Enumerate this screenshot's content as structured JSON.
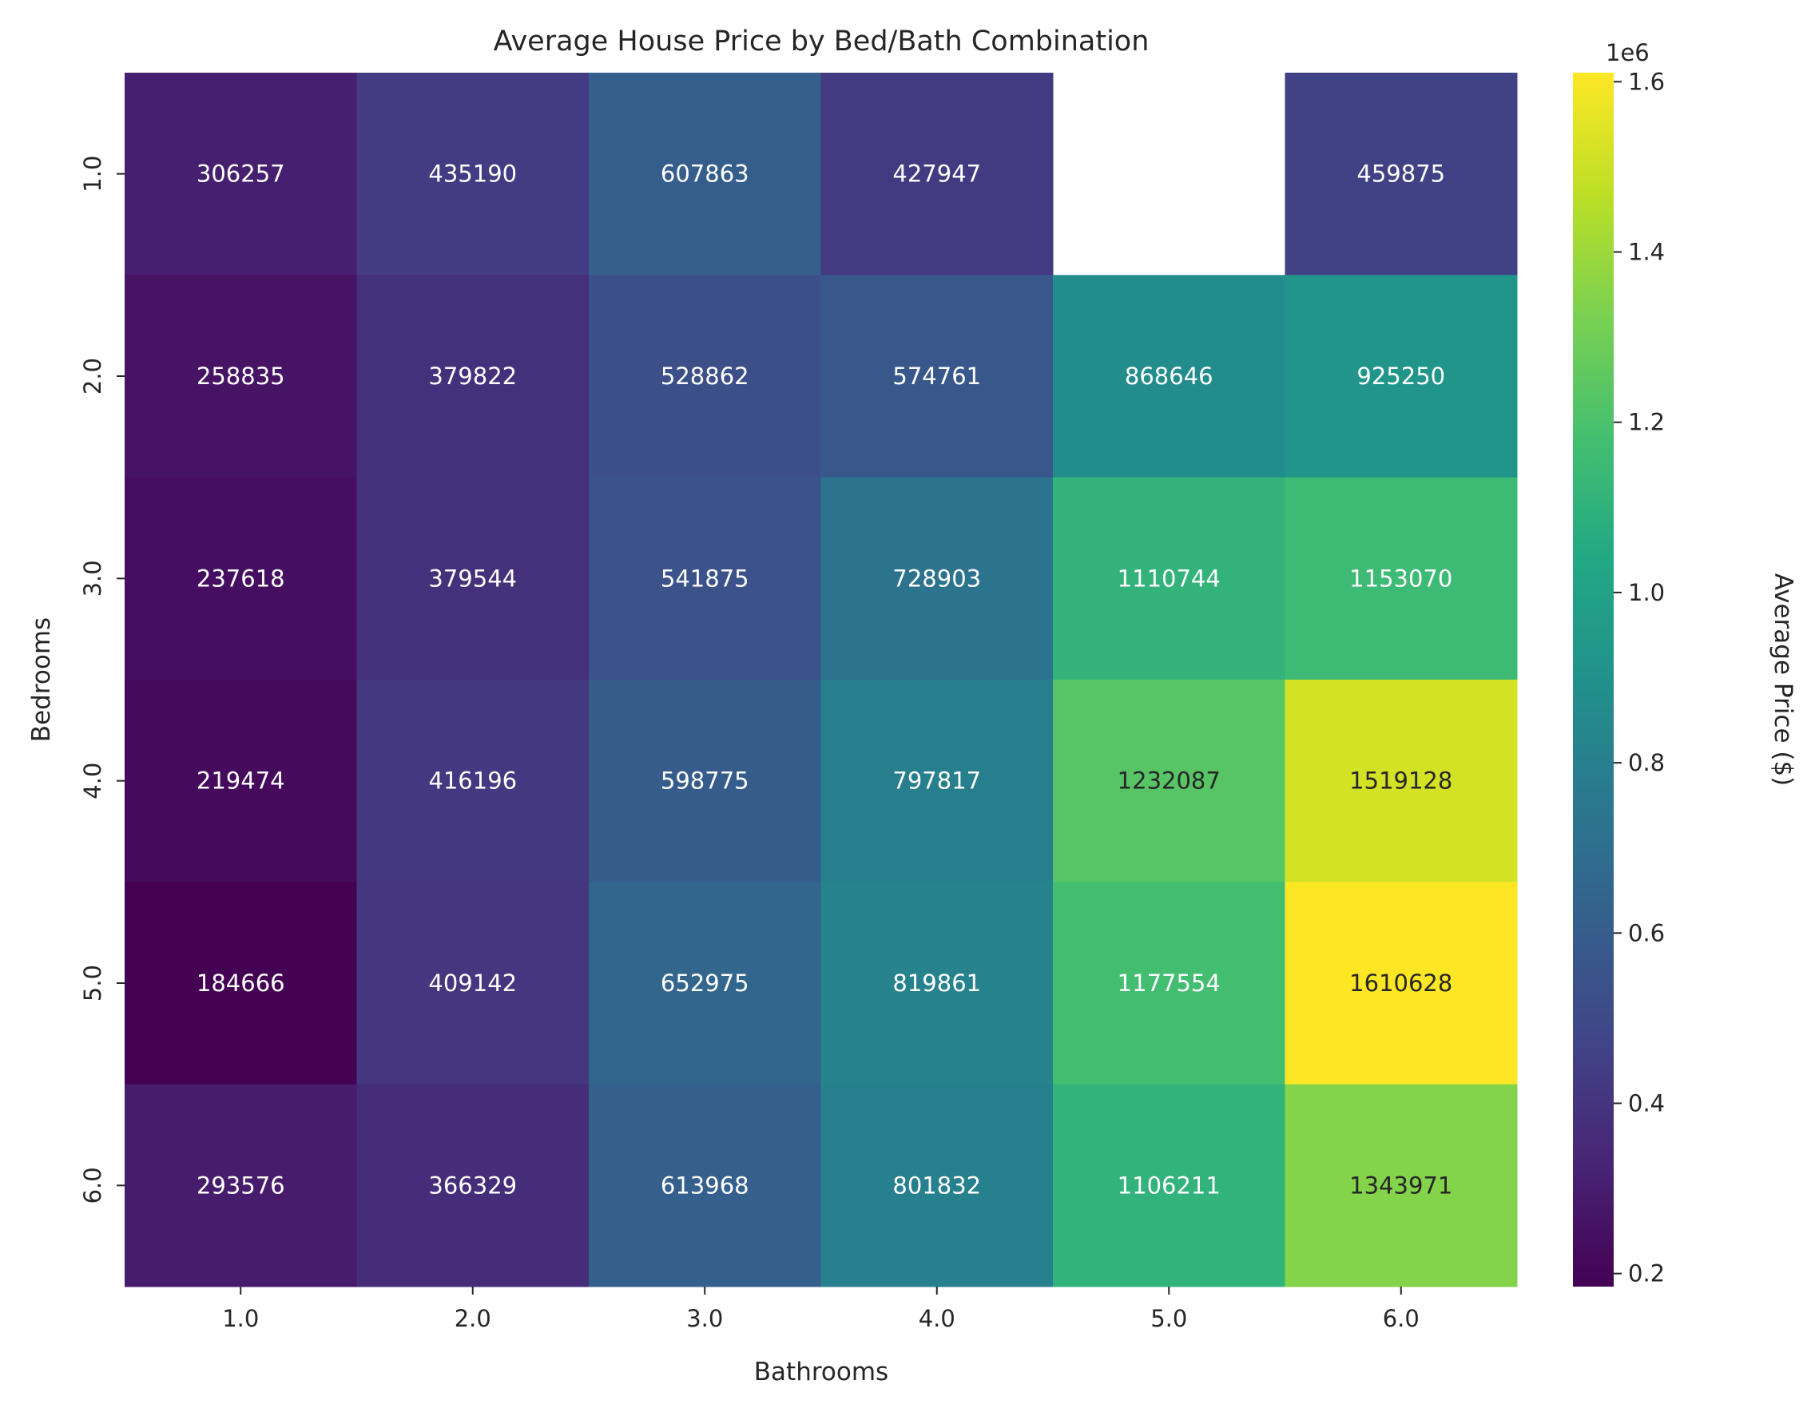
{
  "chart_data": {
    "type": "heatmap",
    "title": "Average House Price by Bed/Bath Combination",
    "xlabel": "Bathrooms",
    "ylabel": "Bedrooms",
    "x_categories": [
      "1.0",
      "2.0",
      "3.0",
      "4.0",
      "5.0",
      "6.0"
    ],
    "y_categories": [
      "1.0",
      "2.0",
      "3.0",
      "4.0",
      "5.0",
      "6.0"
    ],
    "values": [
      [
        306257,
        435190,
        607863,
        427947,
        null,
        459875
      ],
      [
        258835,
        379822,
        528862,
        574761,
        868646,
        925250
      ],
      [
        237618,
        379544,
        541875,
        728903,
        1110744,
        1153070
      ],
      [
        219474,
        416196,
        598775,
        797817,
        1232087,
        1519128
      ],
      [
        184666,
        409142,
        652975,
        819861,
        1177554,
        1610628
      ],
      [
        293576,
        366329,
        613968,
        801832,
        1106211,
        1343971
      ]
    ],
    "colormap": "viridis",
    "colorbar": {
      "label": "Average Price ($)",
      "offset_text": "1e6",
      "range": [
        184666,
        1610628
      ],
      "ticks": [
        0.2,
        0.4,
        0.6,
        0.8,
        1.0,
        1.2,
        1.4,
        1.6
      ],
      "tick_labels": [
        "0.2",
        "0.4",
        "0.6",
        "0.8",
        "1.0",
        "1.2",
        "1.4",
        "1.6"
      ],
      "tick_scale": 1000000
    }
  }
}
